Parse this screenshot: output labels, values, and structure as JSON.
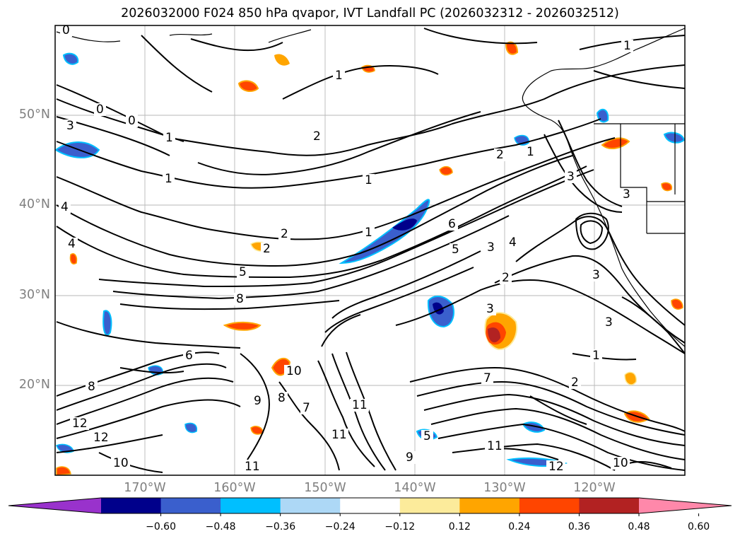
{
  "title": "2026032000 F024 850 hPa qvapor, IVT Landfall PC (2026032312 - 2026032512)",
  "lat_labels": [
    "50°N",
    "40°N",
    "30°N",
    "20°N"
  ],
  "lon_labels": [
    "170°W",
    "160°W",
    "150°W",
    "140°W",
    "130°W",
    "120°W"
  ],
  "colorbar": {
    "ticks": [
      "−0.60",
      "−0.48",
      "−0.36",
      "−0.24",
      "−0.12",
      "0.12",
      "0.24",
      "0.36",
      "0.48",
      "0.60"
    ],
    "colors": [
      "#9932cc",
      "#00008b",
      "#3a5fcd",
      "#00bfff",
      "#add8f6",
      "#ffffff",
      "#fceb9b",
      "#ffa500",
      "#ff4500",
      "#b22222",
      "#ff88aa"
    ]
  },
  "contour_labels": [
    "0",
    "0",
    "0",
    "3",
    "1",
    "2",
    "1",
    "1",
    "2",
    "4",
    "2",
    "5",
    "1",
    "1",
    "6",
    "3",
    "4",
    "5",
    "2",
    "3",
    "8",
    "7",
    "8",
    "6",
    "10",
    "9",
    "8",
    "7",
    "11",
    "11",
    "5",
    "11",
    "12",
    "9",
    "3",
    "2",
    "1",
    "3",
    "3",
    "12",
    "10",
    "11",
    "12",
    "10",
    "1",
    "1",
    "4",
    "3",
    "2"
  ]
}
